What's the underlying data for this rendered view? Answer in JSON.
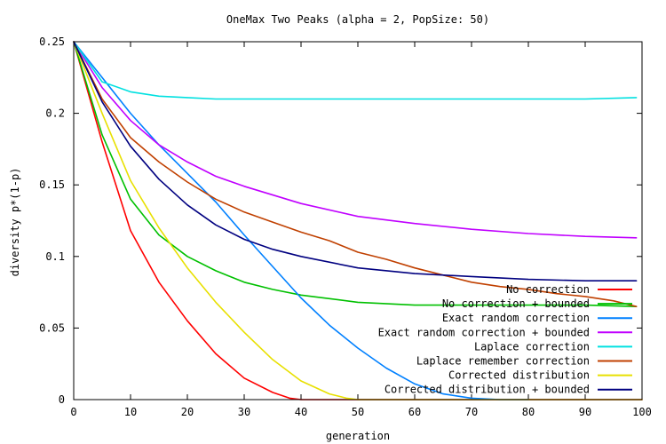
{
  "chart_data": {
    "type": "line",
    "title": "OneMax Two Peaks (alpha = 2, PopSize: 50)",
    "xlabel": "generation",
    "ylabel": "diversity p*(1-p)",
    "xlim": [
      0,
      100
    ],
    "ylim": [
      0,
      0.25
    ],
    "x_ticks": [
      0,
      10,
      20,
      30,
      40,
      50,
      60,
      70,
      80,
      90,
      100
    ],
    "y_ticks": [
      0,
      0.05,
      0.1,
      0.15,
      0.2,
      0.25
    ],
    "x_tick_labels": [
      "0",
      "10",
      "20",
      "30",
      "40",
      "50",
      "60",
      "70",
      "80",
      "90",
      "100"
    ],
    "y_tick_labels": [
      "0",
      "0.05",
      "0.1",
      "0.15",
      "0.2",
      "0.25"
    ],
    "grid": false,
    "legend_position": "bottom-right",
    "series": [
      {
        "name": "No correction",
        "color": "#ff0000",
        "x": [
          0,
          5,
          10,
          15,
          20,
          25,
          30,
          35,
          38,
          40,
          100
        ],
        "y": [
          0.25,
          0.18,
          0.118,
          0.082,
          0.055,
          0.032,
          0.015,
          0.005,
          0.001,
          0.0,
          0.0
        ]
      },
      {
        "name": "No correction + bounded",
        "color": "#00c000",
        "x": [
          0,
          5,
          10,
          15,
          20,
          25,
          30,
          35,
          40,
          50,
          60,
          70,
          80,
          90,
          99
        ],
        "y": [
          0.25,
          0.185,
          0.14,
          0.115,
          0.1,
          0.09,
          0.082,
          0.077,
          0.073,
          0.068,
          0.066,
          0.066,
          0.066,
          0.066,
          0.065
        ]
      },
      {
        "name": "Exact random correction",
        "color": "#0080ff",
        "x": [
          0,
          5,
          10,
          15,
          20,
          25,
          30,
          35,
          40,
          45,
          50,
          55,
          60,
          65,
          70,
          75,
          80
        ],
        "y": [
          0.25,
          0.225,
          0.2,
          0.178,
          0.158,
          0.138,
          0.115,
          0.093,
          0.071,
          0.052,
          0.036,
          0.022,
          0.011,
          0.004,
          0.001,
          0.0,
          0.0
        ]
      },
      {
        "name": "Exact random correction + bounded",
        "color": "#c000ff",
        "x": [
          0,
          5,
          10,
          15,
          20,
          25,
          30,
          40,
          50,
          60,
          70,
          80,
          90,
          99
        ],
        "y": [
          0.25,
          0.218,
          0.195,
          0.178,
          0.166,
          0.156,
          0.149,
          0.137,
          0.128,
          0.123,
          0.119,
          0.116,
          0.114,
          0.113
        ]
      },
      {
        "name": "Laplace correction",
        "color": "#00e0e0",
        "x": [
          0,
          5,
          10,
          15,
          20,
          25,
          30,
          40,
          50,
          60,
          70,
          80,
          90,
          99
        ],
        "y": [
          0.25,
          0.222,
          0.215,
          0.212,
          0.211,
          0.21,
          0.21,
          0.21,
          0.21,
          0.21,
          0.21,
          0.21,
          0.21,
          0.211
        ]
      },
      {
        "name": "Laplace remember correction",
        "color": "#c04000",
        "x": [
          0,
          5,
          10,
          15,
          20,
          25,
          30,
          35,
          40,
          45,
          50,
          55,
          60,
          65,
          70,
          75,
          80,
          85,
          90,
          95,
          99
        ],
        "y": [
          0.25,
          0.21,
          0.183,
          0.166,
          0.152,
          0.14,
          0.131,
          0.124,
          0.117,
          0.111,
          0.103,
          0.098,
          0.092,
          0.087,
          0.082,
          0.079,
          0.077,
          0.074,
          0.072,
          0.069,
          0.065
        ]
      },
      {
        "name": "Corrected distribution",
        "color": "#e8e000",
        "x": [
          0,
          5,
          10,
          15,
          20,
          25,
          30,
          35,
          40,
          45,
          48,
          50,
          100
        ],
        "y": [
          0.25,
          0.2,
          0.153,
          0.12,
          0.092,
          0.068,
          0.047,
          0.028,
          0.013,
          0.004,
          0.001,
          0.0,
          0.0
        ]
      },
      {
        "name": "Corrected distribution + bounded",
        "color": "#000080",
        "x": [
          0,
          5,
          10,
          15,
          20,
          25,
          30,
          35,
          40,
          50,
          60,
          70,
          80,
          90,
          99
        ],
        "y": [
          0.25,
          0.208,
          0.177,
          0.154,
          0.136,
          0.122,
          0.112,
          0.105,
          0.1,
          0.092,
          0.088,
          0.086,
          0.084,
          0.083,
          0.083
        ]
      }
    ]
  }
}
